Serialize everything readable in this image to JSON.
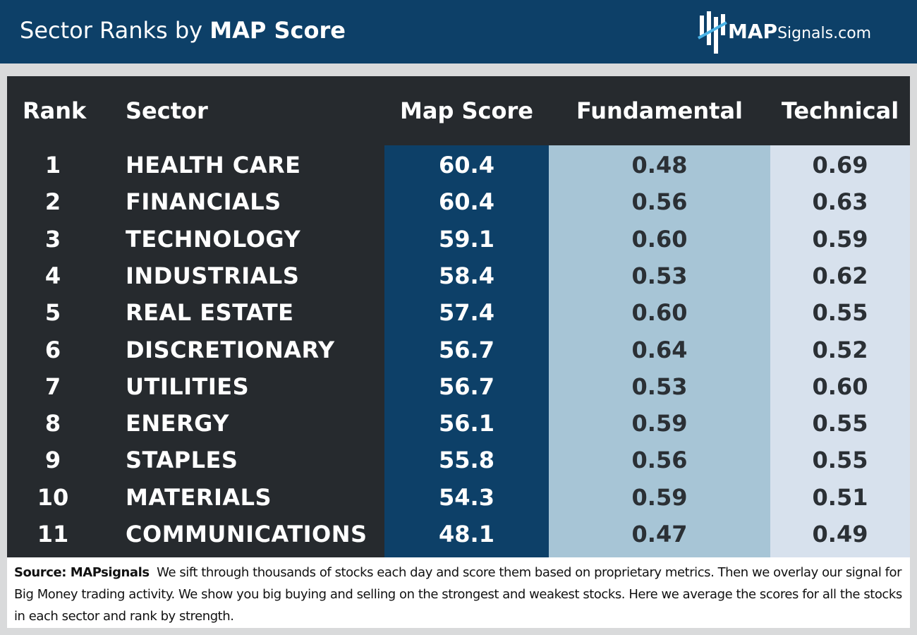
{
  "header": {
    "title_plain": "Sector Ranks by",
    "title_bold": "MAP Score",
    "logo_strong": "MAP",
    "logo_light": "Signals.com"
  },
  "colors": {
    "header_bg": "#0d4068",
    "table_bg": "#262a2e",
    "map_score_column": "#0d4068",
    "fundamental_column": "#a7c5d6",
    "technical_column": "#d7e1ed"
  },
  "chart_data": {
    "type": "table",
    "title": "Sector Ranks by MAP Score",
    "columns": [
      "Rank",
      "Sector",
      "Map Score",
      "Fundamental",
      "Technical"
    ],
    "rows": [
      {
        "rank": "1",
        "sector": "HEALTH CARE",
        "map_score": "60.4",
        "fundamental": "0.48",
        "technical": "0.69"
      },
      {
        "rank": "2",
        "sector": "FINANCIALS",
        "map_score": "60.4",
        "fundamental": "0.56",
        "technical": "0.63"
      },
      {
        "rank": "3",
        "sector": "TECHNOLOGY",
        "map_score": "59.1",
        "fundamental": "0.60",
        "technical": "0.59"
      },
      {
        "rank": "4",
        "sector": "INDUSTRIALS",
        "map_score": "58.4",
        "fundamental": "0.53",
        "technical": "0.62"
      },
      {
        "rank": "5",
        "sector": "REAL ESTATE",
        "map_score": "57.4",
        "fundamental": "0.60",
        "technical": "0.55"
      },
      {
        "rank": "6",
        "sector": "DISCRETIONARY",
        "map_score": "56.7",
        "fundamental": "0.64",
        "technical": "0.52"
      },
      {
        "rank": "7",
        "sector": "UTILITIES",
        "map_score": "56.7",
        "fundamental": "0.53",
        "technical": "0.60"
      },
      {
        "rank": "8",
        "sector": "ENERGY",
        "map_score": "56.1",
        "fundamental": "0.59",
        "technical": "0.55"
      },
      {
        "rank": "9",
        "sector": "STAPLES",
        "map_score": "55.8",
        "fundamental": "0.56",
        "technical": "0.55"
      },
      {
        "rank": "10",
        "sector": "MATERIALS",
        "map_score": "54.3",
        "fundamental": "0.59",
        "technical": "0.51"
      },
      {
        "rank": "11",
        "sector": "COMMUNICATIONS",
        "map_score": "48.1",
        "fundamental": "0.47",
        "technical": "0.49"
      }
    ]
  },
  "footer": {
    "source_label": "Source:  MAPsignals",
    "text": "We sift through thousands of stocks each day and score them based on proprietary metrics. Then we overlay our signal for Big Money trading activity. We show you big buying and selling on the strongest and weakest stocks. Here we average the scores for all the stocks in each sector and rank by strength."
  }
}
